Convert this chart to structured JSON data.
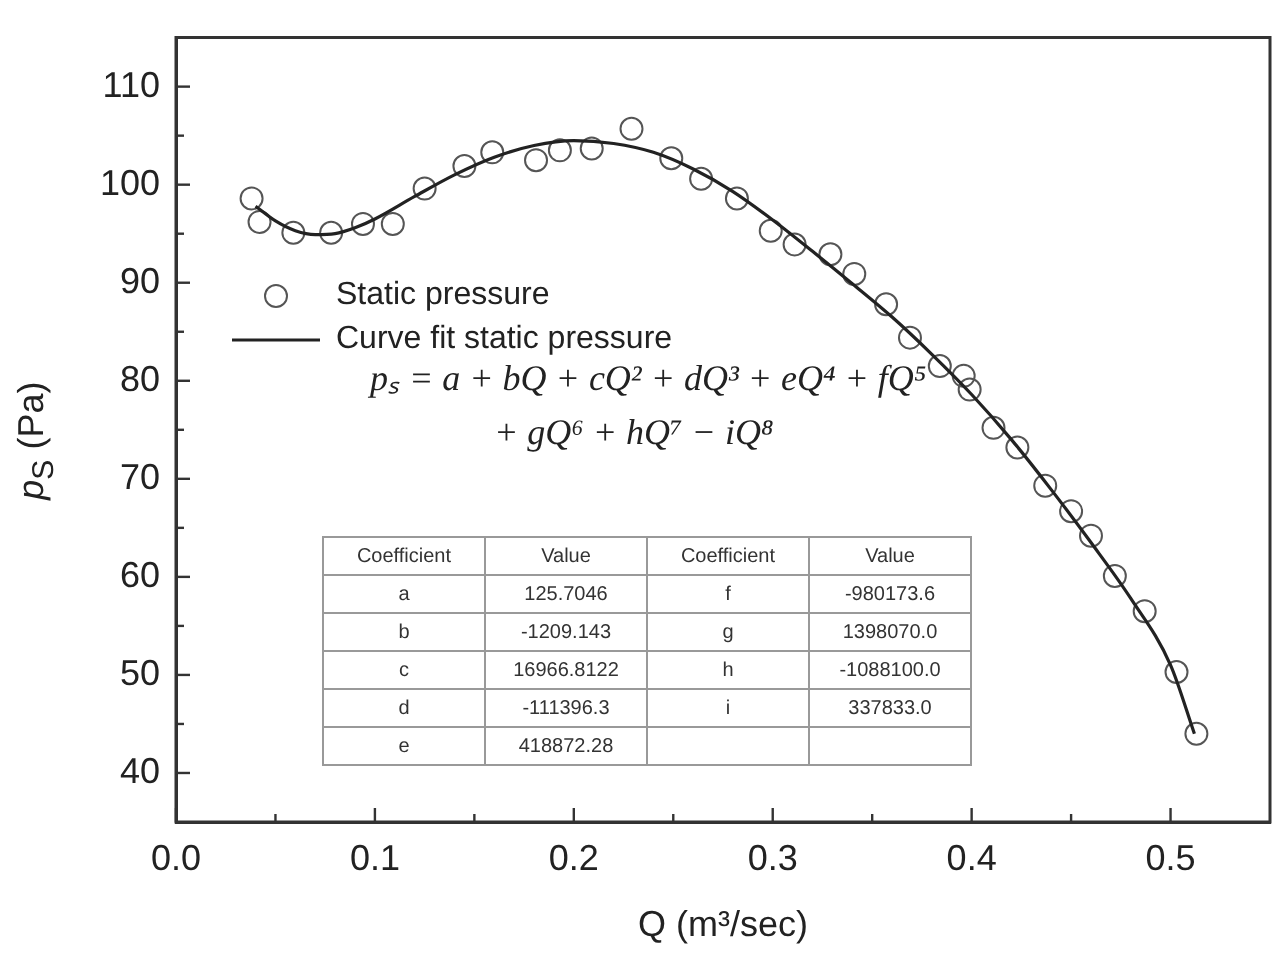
{
  "chart_data": {
    "type": "scatter",
    "xlabel": "Q (m³/sec)",
    "ylabel": "p$_{S}$ (Pa)",
    "xlim": [
      0,
      0.55
    ],
    "ylim": [
      35,
      115
    ],
    "xticks": [
      {
        "value": 0,
        "label": "0.0"
      },
      {
        "value": 0.05,
        "label": null
      },
      {
        "value": 0.1,
        "label": "0.1"
      },
      {
        "value": 0.15,
        "label": null
      },
      {
        "value": 0.2,
        "label": "0.2"
      },
      {
        "value": 0.25,
        "label": null
      },
      {
        "value": 0.3,
        "label": "0.3"
      },
      {
        "value": 0.35,
        "label": null
      },
      {
        "value": 0.4,
        "label": "0.4"
      },
      {
        "value": 0.45,
        "label": null
      },
      {
        "value": 0.5,
        "label": "0.5"
      }
    ],
    "yticks": [
      40,
      {
        "value": 45,
        "label": null
      },
      50,
      {
        "value": 55,
        "label": null
      },
      60,
      {
        "value": 65,
        "label": null
      },
      70,
      {
        "value": 75,
        "label": null
      },
      80,
      {
        "value": 85,
        "label": null
      },
      90,
      {
        "value": 95,
        "label": null
      },
      100,
      {
        "value": 105,
        "label": null
      },
      110
    ],
    "grid": false,
    "legend": "top left",
    "annotations": [
      "pₛ = a + bQ + cQ² + dQ³ + eQ⁴ + fQ⁵",
      "+ gQ⁶ + hQ⁷ − iQ⁸",
      "Coefficient",
      "Value",
      "Coefficient",
      "Value",
      "a",
      "125.7046",
      "f",
      "-980173.6",
      "b",
      "-1209.143",
      "g",
      "1398070.0",
      "c",
      "16966.8122",
      "h",
      "-1088100.0",
      "d",
      "-111396.3",
      "i",
      "337833.0",
      "e",
      "418872.28"
    ],
    "series": [
      {
        "name": "Static pressure",
        "color": "#555555",
        "marker": "circle",
        "x": [
          0.038,
          0.042,
          0.059,
          0.078,
          0.094,
          0.109,
          0.125,
          0.145,
          0.159,
          0.181,
          0.193,
          0.209,
          0.229,
          0.249,
          0.264,
          0.282,
          0.299,
          0.311,
          0.329,
          0.341,
          0.357,
          0.369,
          0.384,
          0.396,
          0.399,
          0.411,
          0.423,
          0.437,
          0.45,
          0.46,
          0.472,
          0.487,
          0.503,
          0.513
        ],
        "values": [
          98.6,
          96.2,
          95.1,
          95.1,
          96.0,
          96.0,
          99.6,
          101.9,
          103.3,
          102.5,
          103.5,
          103.7,
          105.7,
          102.7,
          100.6,
          98.6,
          95.3,
          93.9,
          92.9,
          90.9,
          87.8,
          84.4,
          81.5,
          80.5,
          79.1,
          75.2,
          73.2,
          69.3,
          66.7,
          64.2,
          60.1,
          56.5,
          50.3,
          44.0
        ]
      },
      {
        "name": "Curve fit static pressure",
        "type": "line",
        "color": "#222222",
        "marker": "none",
        "line_style": "solid",
        "x": [
          0.04,
          0.05,
          0.06,
          0.07,
          0.08,
          0.09,
          0.1,
          0.12,
          0.14,
          0.16,
          0.18,
          0.2,
          0.22,
          0.24,
          0.26,
          0.28,
          0.3,
          0.32,
          0.34,
          0.36,
          0.38,
          0.4,
          0.42,
          0.44,
          0.46,
          0.48,
          0.5,
          0.512
        ],
        "values": [
          97.8,
          96.3,
          95.3,
          94.9,
          95.0,
          95.6,
          96.5,
          98.8,
          101.0,
          102.8,
          104.0,
          104.5,
          104.2,
          103.3,
          101.6,
          99.3,
          96.4,
          93.2,
          89.9,
          86.5,
          82.7,
          78.6,
          74.0,
          68.9,
          63.5,
          57.8,
          51.0,
          44.0
        ]
      }
    ]
  }
}
